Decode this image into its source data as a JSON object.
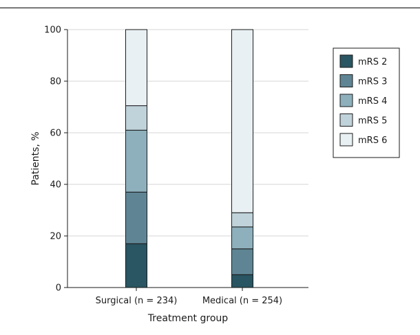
{
  "chart_data": {
    "type": "bar",
    "stacked": true,
    "title": "",
    "xlabel": "Treatment group",
    "ylabel": "Patients, %",
    "ylim": [
      0,
      100
    ],
    "yticks": [
      0,
      20,
      40,
      60,
      80,
      100
    ],
    "grid": true,
    "legend_position": "top-right",
    "categories": [
      "Surgical (n = 234)",
      "Medical (n = 254)"
    ],
    "series": [
      {
        "name": "mRS 2",
        "color": "#2a5562",
        "values": [
          17,
          5
        ]
      },
      {
        "name": "mRS 3",
        "color": "#5f8594",
        "values": [
          20,
          10
        ]
      },
      {
        "name": "mRS 4",
        "color": "#8eb0bd",
        "values": [
          24,
          8.5
        ]
      },
      {
        "name": "mRS 5",
        "color": "#c0d3da",
        "values": [
          9.5,
          5.5
        ]
      },
      {
        "name": "mRS 6",
        "color": "#e8f0f3",
        "values": [
          29.5,
          71
        ]
      }
    ]
  }
}
